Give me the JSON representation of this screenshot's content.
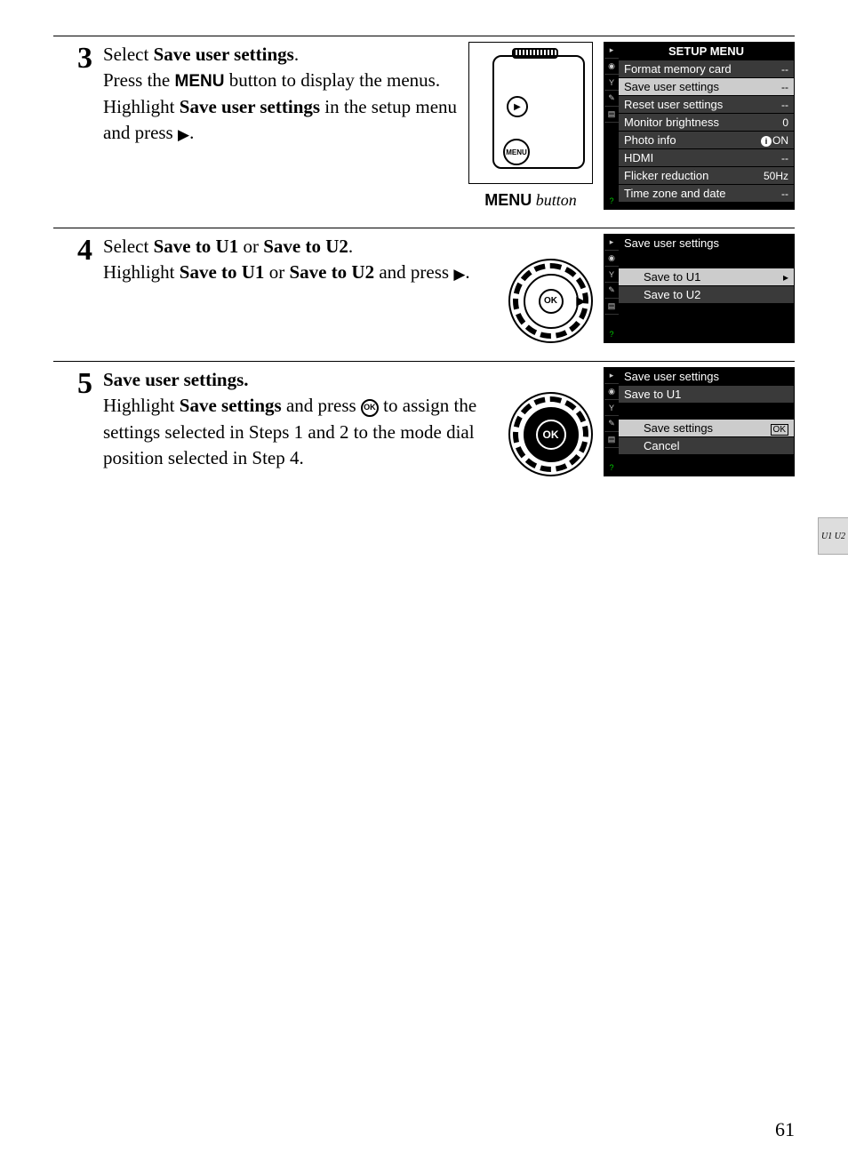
{
  "page_number": "61",
  "side_tab_label": "U1\nU2",
  "steps": [
    {
      "number": "3",
      "heading_parts": [
        "Select ",
        "Save user settings",
        "."
      ],
      "body_html": "Press the <span class='inline-menu'>MENU</span> button to display the menus. Highlight <span class='bold'>Save user settings</span> in the setup menu and press <span class='triangle'></span>.",
      "illustration": "camera",
      "illustration_caption_menu": "MENU",
      "illustration_caption_rest": " button",
      "screen": {
        "title": "SETUP MENU",
        "rows": [
          {
            "label": "Format memory card",
            "value": "--",
            "highlight": false
          },
          {
            "label": "Save user settings",
            "value": "--",
            "highlight": true
          },
          {
            "label": "Reset user settings",
            "value": "--",
            "highlight": false
          },
          {
            "label": "Monitor brightness",
            "value": "0",
            "highlight": false
          },
          {
            "label": "Photo info",
            "value": "info_ON",
            "highlight": false
          },
          {
            "label": "HDMI",
            "value": "--",
            "highlight": false
          },
          {
            "label": "Flicker reduction",
            "value": "50Hz",
            "highlight": false
          },
          {
            "label": "Time zone and date",
            "value": "--",
            "highlight": false
          }
        ]
      }
    },
    {
      "number": "4",
      "heading_parts": [
        "Select ",
        "Save to U1",
        " or ",
        "Save to U2",
        "."
      ],
      "body_html": "Highlight <span class='bold'>Save to U1</span> or <span class='bold'>Save to U2</span> and press <span class='triangle'></span>.",
      "illustration": "dial_right",
      "screen": {
        "header": "Save user settings",
        "rows": [
          {
            "label": "Save to U1",
            "value": "▸",
            "highlight": true
          },
          {
            "label": "Save to U2",
            "value": "",
            "highlight": false
          }
        ]
      }
    },
    {
      "number": "5",
      "heading_parts": [
        "Save user settings."
      ],
      "body_html": "Highlight <span class='bold'>Save settings</span> and press <span class='circle-ok'>OK</span> to assign the settings selected in Steps 1 and 2 to the mode dial position selected in Step 4.",
      "illustration": "dial_ok",
      "screen": {
        "header": "Save user settings",
        "subhead": "Save to U1",
        "rows": [
          {
            "label": "Save settings",
            "value": "OK",
            "highlight": true
          },
          {
            "label": "Cancel",
            "value": "",
            "highlight": false
          }
        ]
      }
    }
  ],
  "colors": {
    "screen_bg": "#000000",
    "screen_text": "#ffffff",
    "row_bg": "#3a3a3a",
    "highlight_bg": "#cccccc",
    "highlight_text": "#000000"
  }
}
